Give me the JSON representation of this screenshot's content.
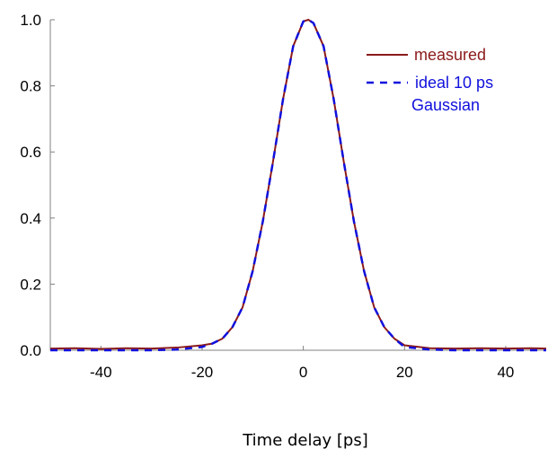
{
  "chart_data": {
    "type": "line",
    "title": "",
    "xlabel": "Time delay [ps]",
    "ylabel": "",
    "xlim": [
      -50,
      48
    ],
    "ylim": [
      0,
      1
    ],
    "xticks": [
      -40,
      -20,
      0,
      20,
      40
    ],
    "xtick_labels": [
      "-40",
      "-20",
      "0",
      "20",
      "40"
    ],
    "yticks": [
      0,
      0.2,
      0.4,
      0.6,
      0.8,
      1.0
    ],
    "ytick_labels": [
      "0.0",
      "0.2",
      "0.4",
      "0.6",
      "0.8",
      "1.0"
    ],
    "grid": false,
    "legend_position": "top-right",
    "series": [
      {
        "name": "measured",
        "color": "#8b1a1a",
        "style": "solid",
        "x": [
          -50,
          -45,
          -40,
          -35,
          -30,
          -25,
          -20,
          -18,
          -16,
          -14,
          -12,
          -10,
          -8,
          -6,
          -4,
          -2,
          0,
          1,
          2,
          4,
          6,
          8,
          10,
          12,
          14,
          16,
          18,
          20,
          25,
          30,
          35,
          40,
          45,
          48
        ],
        "y": [
          0.005,
          0.006,
          0.004,
          0.006,
          0.005,
          0.008,
          0.015,
          0.02,
          0.035,
          0.07,
          0.13,
          0.24,
          0.39,
          0.57,
          0.76,
          0.92,
          0.995,
          1.0,
          0.99,
          0.92,
          0.76,
          0.57,
          0.39,
          0.24,
          0.13,
          0.07,
          0.035,
          0.015,
          0.006,
          0.005,
          0.006,
          0.005,
          0.006,
          0.005
        ]
      },
      {
        "name": "ideal 10 ps Gaussian",
        "color": "#1010dd",
        "style": "dashed",
        "x": [
          -50,
          -40,
          -30,
          -25,
          -20,
          -18,
          -16,
          -14,
          -12,
          -10,
          -8,
          -6,
          -4,
          -2,
          0,
          1,
          2,
          4,
          6,
          8,
          10,
          12,
          14,
          16,
          18,
          20,
          25,
          30,
          40,
          48
        ],
        "y": [
          0.0,
          0.0,
          0.0,
          0.002,
          0.01,
          0.02,
          0.035,
          0.07,
          0.13,
          0.24,
          0.39,
          0.57,
          0.76,
          0.92,
          0.995,
          1.0,
          0.99,
          0.92,
          0.76,
          0.57,
          0.39,
          0.24,
          0.13,
          0.07,
          0.035,
          0.01,
          0.002,
          0.0,
          0.0,
          0.0
        ]
      }
    ],
    "legend": {
      "measured_label": "measured",
      "ideal_label_line1": "ideal 10 ps",
      "ideal_label_line2": "Gaussian"
    }
  }
}
